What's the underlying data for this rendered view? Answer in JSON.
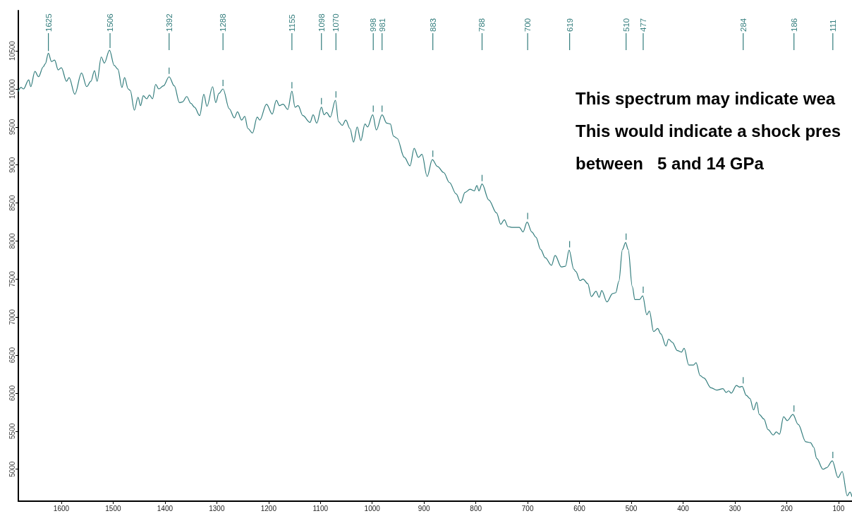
{
  "chart_data": {
    "type": "line",
    "color": "#337d7d",
    "marker": "none",
    "line_style": "solid",
    "grid": false,
    "xlim": [
      1683,
      74
    ],
    "xticks": [
      1600,
      1500,
      1400,
      1300,
      1200,
      1100,
      1000,
      900,
      800,
      700,
      600,
      500,
      400,
      300,
      200,
      100
    ],
    "ylim": [
      4580,
      11030
    ],
    "yticks": [
      5000,
      5500,
      6000,
      6500,
      7000,
      7500,
      8000,
      8500,
      9000,
      9500,
      10000,
      10500
    ],
    "x": [
      1683,
      1678,
      1673,
      1663,
      1659,
      1651,
      1644,
      1635,
      1631,
      1625,
      1619,
      1613,
      1606,
      1600,
      1590,
      1585,
      1574,
      1561,
      1551,
      1543,
      1536,
      1531,
      1523,
      1517,
      1507,
      1498,
      1491,
      1483,
      1478,
      1471,
      1467,
      1459,
      1452,
      1447,
      1442,
      1435,
      1430,
      1424,
      1418,
      1412,
      1403,
      1392,
      1382,
      1372,
      1366,
      1358,
      1350,
      1343,
      1333,
      1325,
      1319,
      1308,
      1302,
      1296,
      1288,
      1276,
      1266,
      1260,
      1252,
      1246,
      1240,
      1231,
      1222,
      1217,
      1204,
      1193,
      1185,
      1179,
      1172,
      1163,
      1155,
      1149,
      1143,
      1134,
      1120,
      1114,
      1107,
      1098,
      1093,
      1088,
      1081,
      1071,
      1065,
      1058,
      1051,
      1043,
      1036,
      1029,
      1022,
      1014,
      1009,
      999,
      992,
      981,
      972,
      965,
      959,
      952,
      938,
      927,
      919,
      911,
      904,
      894,
      884,
      874,
      862,
      851,
      838,
      829,
      821,
      811,
      803,
      798,
      794,
      788,
      775,
      760,
      752,
      745,
      738,
      729,
      716,
      709,
      701,
      692,
      684,
      675,
      666,
      654,
      647,
      635,
      627,
      620,
      611,
      607,
      599,
      593,
      584,
      577,
      568,
      562,
      557,
      547,
      536,
      530,
      524,
      517,
      511,
      506,
      498,
      493,
      484,
      478,
      470,
      465,
      457,
      449,
      443,
      433,
      428,
      421,
      411,
      403,
      398,
      389,
      380,
      375,
      367,
      360,
      346,
      335,
      323,
      317,
      312,
      307,
      297,
      291,
      286,
      278,
      271,
      264,
      258,
      253,
      244,
      236,
      226,
      220,
      214,
      206,
      199,
      188,
      178,
      163,
      154,
      148,
      142,
      130,
      123,
      112,
      101,
      93,
      83,
      78,
      74
    ],
    "values": [
      9970,
      10020,
      10000,
      10120,
      10030,
      10230,
      10160,
      10290,
      10330,
      10470,
      10360,
      10380,
      10250,
      10280,
      10100,
      10150,
      9930,
      10210,
      10030,
      10100,
      10240,
      10100,
      10420,
      10340,
      10510,
      10310,
      10260,
      10020,
      10150,
      10000,
      9980,
      9720,
      9890,
      9780,
      9910,
      9870,
      9920,
      9870,
      10060,
      10000,
      10040,
      10160,
      10040,
      9820,
      9830,
      9900,
      9810,
      9760,
      9650,
      9930,
      9770,
      10030,
      9820,
      9940,
      10000,
      9740,
      9620,
      9700,
      9590,
      9640,
      9480,
      9420,
      9630,
      9590,
      9800,
      9670,
      9850,
      9780,
      9800,
      9730,
      9970,
      9760,
      9780,
      9650,
      9560,
      9660,
      9550,
      9760,
      9660,
      9690,
      9630,
      9850,
      9570,
      9520,
      9590,
      9480,
      9300,
      9500,
      9320,
      9540,
      9500,
      9660,
      9460,
      9660,
      9550,
      9540,
      9380,
      9350,
      9100,
      8990,
      9220,
      9100,
      9140,
      8850,
      9070,
      8980,
      8900,
      8770,
      8620,
      8500,
      8640,
      8680,
      8660,
      8730,
      8660,
      8750,
      8540,
      8370,
      8220,
      8280,
      8190,
      8180,
      8180,
      8120,
      8250,
      8120,
      8050,
      7890,
      7780,
      7680,
      7810,
      7660,
      7670,
      7880,
      7630,
      7600,
      7480,
      7500,
      7440,
      7270,
      7340,
      7260,
      7350,
      7200,
      7310,
      7320,
      7470,
      7890,
      7980,
      7890,
      7400,
      7230,
      7230,
      7280,
      7030,
      7080,
      6810,
      6850,
      6780,
      6620,
      6710,
      6670,
      6560,
      6540,
      6590,
      6370,
      6370,
      6400,
      6230,
      6200,
      6070,
      6040,
      6060,
      6010,
      6030,
      6000,
      6100,
      6080,
      6090,
      5970,
      5930,
      5780,
      5880,
      5720,
      5660,
      5520,
      5450,
      5490,
      5460,
      5690,
      5640,
      5720,
      5590,
      5360,
      5350,
      5290,
      5140,
      5000,
      5020,
      5110,
      4890,
      4970,
      4650,
      4700,
      4640
    ],
    "annotations": [
      {
        "text": "1625",
        "x": 1625
      },
      {
        "text": "1506",
        "x": 1506
      },
      {
        "text": "1392",
        "x": 1392
      },
      {
        "text": "1288",
        "x": 1288
      },
      {
        "text": "1155",
        "x": 1155
      },
      {
        "text": "1098",
        "x": 1098
      },
      {
        "text": "1070",
        "x": 1070
      },
      {
        "text": "998",
        "x": 998
      },
      {
        "text": "981",
        "x": 981
      },
      {
        "text": "883",
        "x": 883
      },
      {
        "text": "788",
        "x": 788
      },
      {
        "text": "700",
        "x": 700
      },
      {
        "text": "619",
        "x": 619
      },
      {
        "text": "510",
        "x": 510
      },
      {
        "text": "477",
        "x": 477
      },
      {
        "text": "284",
        "x": 284
      },
      {
        "text": "186",
        "x": 186
      },
      {
        "text": "111",
        "x": 111
      },
      "This spectrum may indicate wea",
      "This would indicate a shock pres",
      "between   5 and 14 GPa"
    ]
  }
}
